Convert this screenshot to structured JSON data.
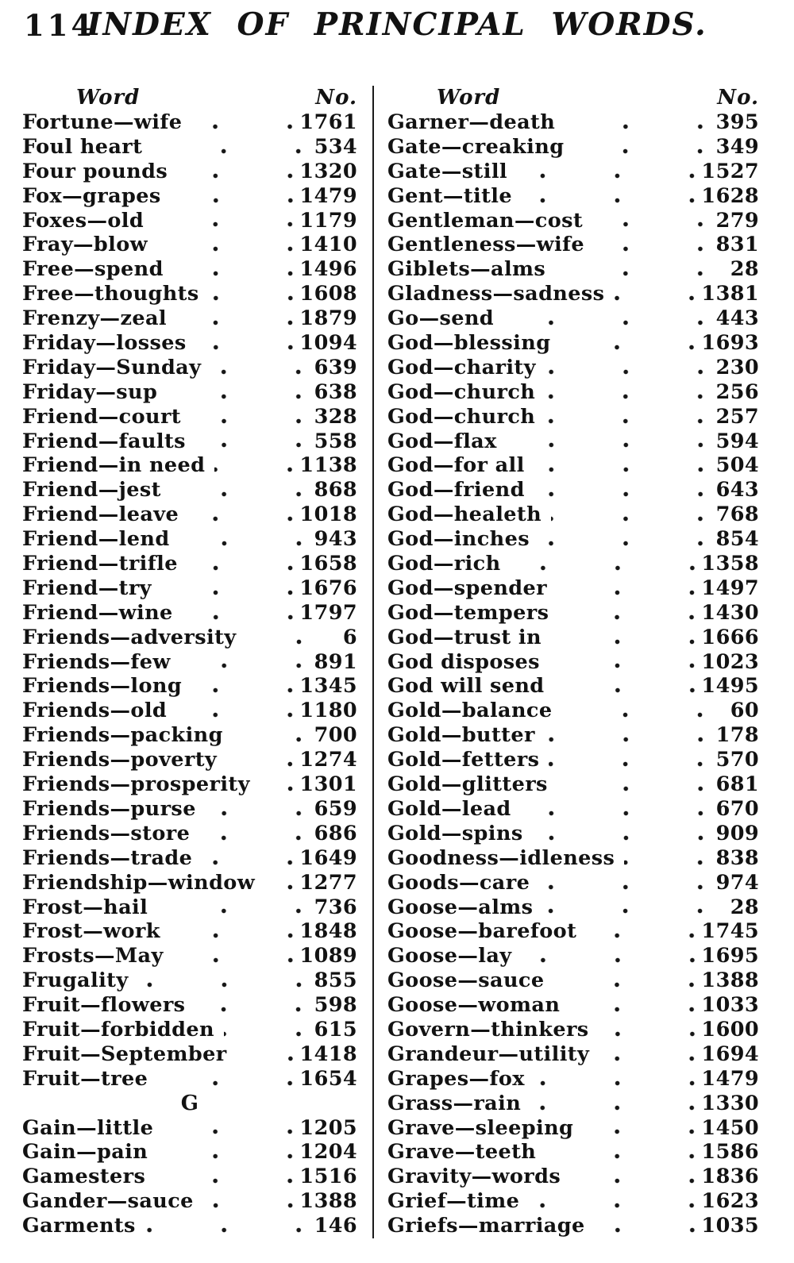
{
  "page": {
    "number": "114",
    "title": "INDEX OF PRINCIPAL WORDS."
  },
  "columns": {
    "word_header": "Word",
    "number_header": "No."
  },
  "left_entries": [
    {
      "word": "Fortune—wife",
      "no": "1761"
    },
    {
      "word": "Foul heart",
      "no": "534"
    },
    {
      "word": "Four pounds",
      "no": "1320"
    },
    {
      "word": "Fox—grapes",
      "no": "1479"
    },
    {
      "word": "Foxes—old",
      "no": "1179"
    },
    {
      "word": "Fray—blow",
      "no": "1410"
    },
    {
      "word": "Free—spend",
      "no": "1496"
    },
    {
      "word": "Free—thoughts",
      "no": "1608"
    },
    {
      "word": "Frenzy—zeal",
      "no": "1879"
    },
    {
      "word": "Friday—losses",
      "no": "1094"
    },
    {
      "word": "Friday—Sunday",
      "no": "639"
    },
    {
      "word": "Friday—sup",
      "no": "638"
    },
    {
      "word": "Friend—court",
      "no": "328"
    },
    {
      "word": "Friend—faults",
      "no": "558"
    },
    {
      "word": "Friend—in need",
      "no": "1138"
    },
    {
      "word": "Friend—jest",
      "no": "868"
    },
    {
      "word": "Friend—leave",
      "no": "1018"
    },
    {
      "word": "Friend—lend",
      "no": "943"
    },
    {
      "word": "Friend—trifle",
      "no": "1658"
    },
    {
      "word": "Friend—try",
      "no": "1676"
    },
    {
      "word": "Friend—wine",
      "no": "1797"
    },
    {
      "word": "Friends—adversity",
      "no": "6"
    },
    {
      "word": "Friends—few",
      "no": "891"
    },
    {
      "word": "Friends—long",
      "no": "1345"
    },
    {
      "word": "Friends—old",
      "no": "1180"
    },
    {
      "word": "Friends—packing",
      "no": "700"
    },
    {
      "word": "Friends—poverty",
      "no": "1274"
    },
    {
      "word": "Friends—prosperity",
      "no": "1301"
    },
    {
      "word": "Friends—purse",
      "no": "659"
    },
    {
      "word": "Friends—store",
      "no": "686"
    },
    {
      "word": "Friends—trade",
      "no": "1649"
    },
    {
      "word": "Friendship—window",
      "no": "1277"
    },
    {
      "word": "Frost—hail",
      "no": "736"
    },
    {
      "word": "Frost—work",
      "no": "1848"
    },
    {
      "word": "Frosts—May",
      "no": "1089"
    },
    {
      "word": "Frugality",
      "no": "855"
    },
    {
      "word": "Fruit—flowers",
      "no": "598"
    },
    {
      "word": "Fruit—forbidden",
      "no": "615"
    },
    {
      "word": "Fruit—September",
      "no": "1418"
    },
    {
      "word": "Fruit—tree",
      "no": "1654"
    },
    {
      "letter": "G"
    },
    {
      "word": "Gain—little",
      "no": "1205"
    },
    {
      "word": "Gain—pain",
      "no": "1204"
    },
    {
      "word": "Gamesters",
      "no": "1516"
    },
    {
      "word": "Gander—sauce",
      "no": "1388"
    },
    {
      "word": "Garments",
      "no": "146"
    }
  ],
  "right_entries": [
    {
      "word": "Garner—death",
      "no": "395"
    },
    {
      "word": "Gate—creaking",
      "no": "349"
    },
    {
      "word": "Gate—still",
      "no": "1527"
    },
    {
      "word": "Gent—title",
      "no": "1628"
    },
    {
      "word": "Gentleman—cost",
      "no": "279"
    },
    {
      "word": "Gentleness—wife",
      "no": "831"
    },
    {
      "word": "Giblets—alms",
      "no": "28"
    },
    {
      "word": "Gladness—sadness",
      "no": "1381"
    },
    {
      "word": "Go—send",
      "no": "443"
    },
    {
      "word": "God—blessing",
      "no": "1693"
    },
    {
      "word": "God—charity",
      "no": "230"
    },
    {
      "word": "God—church",
      "no": "256"
    },
    {
      "word": "God—church",
      "no": "257"
    },
    {
      "word": "God—flax",
      "no": "594"
    },
    {
      "word": "God—for all",
      "no": "504"
    },
    {
      "word": "God—friend",
      "no": "643"
    },
    {
      "word": "God—healeth",
      "no": "768"
    },
    {
      "word": "God—inches",
      "no": "854"
    },
    {
      "word": "God—rich",
      "no": "1358"
    },
    {
      "word": "God—spender",
      "no": "1497"
    },
    {
      "word": "God—tempers",
      "no": "1430"
    },
    {
      "word": "God—trust in",
      "no": "1666"
    },
    {
      "word": "God disposes",
      "no": "1023"
    },
    {
      "word": "God will send",
      "no": "1495"
    },
    {
      "word": "Gold—balance",
      "no": "60"
    },
    {
      "word": "Gold—butter",
      "no": "178"
    },
    {
      "word": "Gold—fetters",
      "no": "570"
    },
    {
      "word": "Gold—glitters",
      "no": "681"
    },
    {
      "word": "Gold—lead",
      "no": "670"
    },
    {
      "word": "Gold—spins",
      "no": "909"
    },
    {
      "word": "Goodness—idleness",
      "no": "838"
    },
    {
      "word": "Goods—care",
      "no": "974"
    },
    {
      "word": "Goose—alms",
      "no": "28"
    },
    {
      "word": "Goose—barefoot",
      "no": "1745"
    },
    {
      "word": "Goose—lay",
      "no": "1695"
    },
    {
      "word": "Goose—sauce",
      "no": "1388"
    },
    {
      "word": "Goose—woman",
      "no": "1033"
    },
    {
      "word": "Govern—thinkers",
      "no": "1600"
    },
    {
      "word": "Grandeur—utility",
      "no": "1694"
    },
    {
      "word": "Grapes—fox",
      "no": "1479"
    },
    {
      "word": "Grass—rain",
      "no": "1330"
    },
    {
      "word": "Grave—sleeping",
      "no": "1450"
    },
    {
      "word": "Grave—teeth",
      "no": "1586"
    },
    {
      "word": "Gravity—words",
      "no": "1836"
    },
    {
      "word": "Grief—time",
      "no": "1623"
    },
    {
      "word": "Griefs—marriage",
      "no": "1035"
    }
  ]
}
